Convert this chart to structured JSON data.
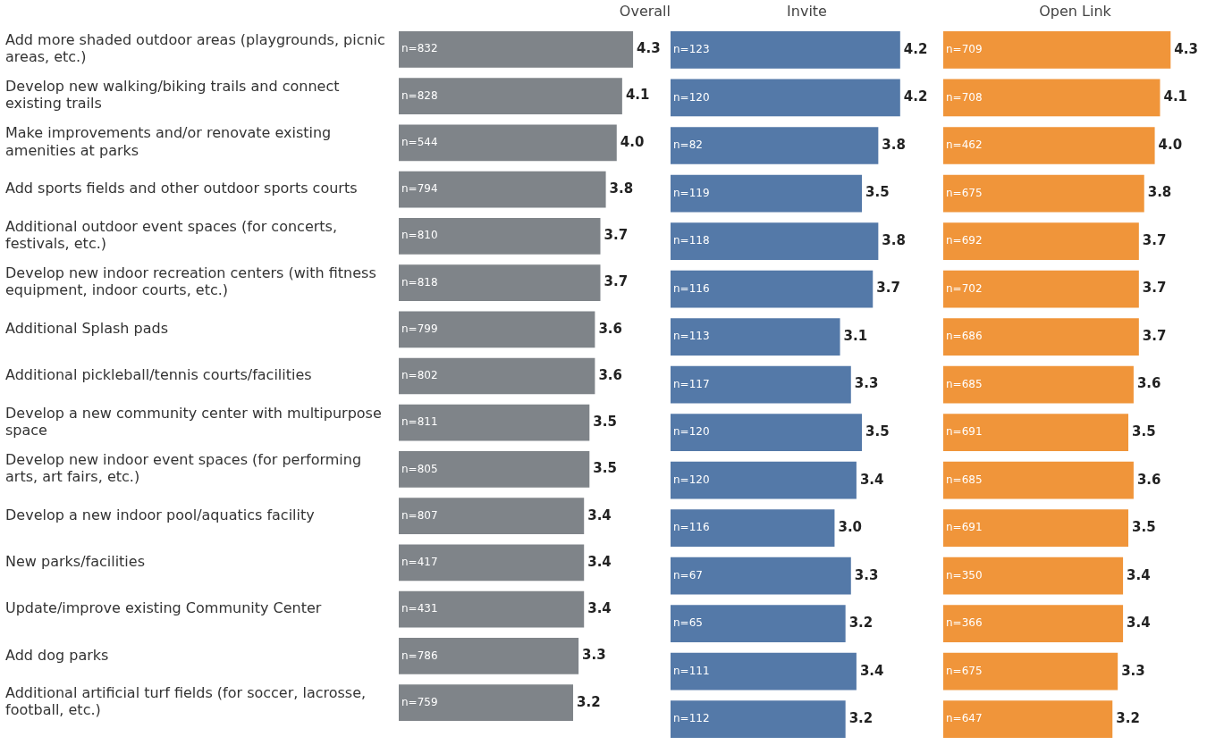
{
  "chart_data": [
    {
      "type": "bar",
      "orientation": "horizontal",
      "title": "Overall",
      "color": "#7f8489",
      "tick_labels": "y",
      "grid": false,
      "legend": false,
      "categories": [
        "Add more shaded outdoor areas (playgrounds, picnic areas, etc.)",
        "Develop new walking/biking trails and connect existing trails",
        "Make improvements and/or renovate existing amenities at parks",
        "Add sports fields and other outdoor sports courts",
        "Additional outdoor event spaces (for concerts, festivals, etc.)",
        "Develop new indoor recreation centers (with fitness equipment, indoor courts, etc.)",
        "Additional Splash pads",
        "Additional pickleball/tennis courts/facilities",
        "Develop a new community center with multipurpose space",
        "Develop new indoor event spaces (for performing arts, art fairs, etc.)",
        "Develop a new indoor pool/aquatics facility",
        "New parks/facilities",
        "Update/improve existing Community Center",
        "Add dog parks",
        "Additional artificial turf fields (for soccer, lacrosse, football, etc.)"
      ],
      "values": [
        4.3,
        4.1,
        4.0,
        3.8,
        3.7,
        3.7,
        3.6,
        3.6,
        3.5,
        3.5,
        3.4,
        3.4,
        3.4,
        3.3,
        3.2
      ],
      "value_labels": [
        "4.3",
        "4.1",
        "4.0",
        "3.8",
        "3.7",
        "3.7",
        "3.6",
        "3.6",
        "3.5",
        "3.5",
        "3.4",
        "3.4",
        "3.4",
        "3.3",
        "3.2"
      ],
      "annotations": [
        "n=832",
        "n=828",
        "n=544",
        "n=794",
        "n=810",
        "n=818",
        "n=799",
        "n=802",
        "n=811",
        "n=805",
        "n=807",
        "n=417",
        "n=431",
        "n=786",
        "n=759"
      ]
    },
    {
      "type": "bar",
      "orientation": "horizontal",
      "title": "Invite",
      "color": "#5479a8",
      "tick_labels": false,
      "grid": false,
      "legend": false,
      "categories": [
        null,
        null,
        null,
        null,
        null,
        null,
        null,
        null,
        null,
        null,
        null,
        null,
        null,
        null,
        null
      ],
      "values": [
        4.2,
        4.2,
        3.8,
        3.5,
        3.8,
        3.7,
        3.1,
        3.3,
        3.5,
        3.4,
        3.0,
        3.3,
        3.2,
        3.4,
        3.2
      ],
      "value_labels": [
        "4.2",
        "4.2",
        "3.8",
        "3.5",
        "3.8",
        "3.7",
        "3.1",
        "3.3",
        "3.5",
        "3.4",
        "3.0",
        "3.3",
        "3.2",
        "3.4",
        "3.2"
      ],
      "annotations": [
        "n=123",
        "n=120",
        "n=82",
        "n=119",
        "n=118",
        "n=116",
        "n=113",
        "n=117",
        "n=120",
        "n=120",
        "n=116",
        "n=67",
        "n=65",
        "n=111",
        "n=112"
      ]
    },
    {
      "type": "bar",
      "orientation": "horizontal",
      "title": "Open Link",
      "color": "#f0953a",
      "tick_labels": false,
      "grid": false,
      "legend": false,
      "categories": [
        null,
        null,
        null,
        null,
        null,
        null,
        null,
        null,
        null,
        null,
        null,
        null,
        null,
        null,
        null
      ],
      "values": [
        4.3,
        4.1,
        4.0,
        3.8,
        3.7,
        3.7,
        3.7,
        3.6,
        3.5,
        3.6,
        3.5,
        3.4,
        3.4,
        3.3,
        3.2
      ],
      "value_labels": [
        "4.3",
        "4.1",
        "4.0",
        "3.8",
        "3.7",
        "3.7",
        "3.7",
        "3.6",
        "3.5",
        "3.6",
        "3.5",
        "3.4",
        "3.4",
        "3.3",
        "3.2"
      ],
      "annotations": [
        "n=709",
        "n=708",
        "n=462",
        "n=675",
        "n=692",
        "n=702",
        "n=686",
        "n=685",
        "n=691",
        "n=685",
        "n=691",
        "n=350",
        "n=366",
        "n=675",
        "n=647"
      ]
    }
  ]
}
